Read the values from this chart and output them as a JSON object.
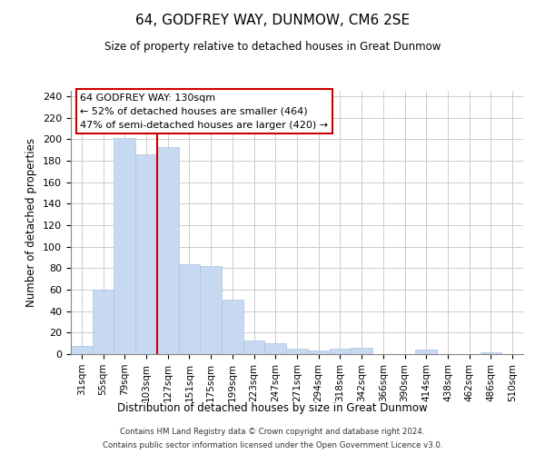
{
  "title": "64, GODFREY WAY, DUNMOW, CM6 2SE",
  "subtitle": "Size of property relative to detached houses in Great Dunmow",
  "xlabel": "Distribution of detached houses by size in Great Dunmow",
  "ylabel": "Number of detached properties",
  "bar_labels": [
    "31sqm",
    "55sqm",
    "79sqm",
    "103sqm",
    "127sqm",
    "151sqm",
    "175sqm",
    "199sqm",
    "223sqm",
    "247sqm",
    "271sqm",
    "294sqm",
    "318sqm",
    "342sqm",
    "366sqm",
    "390sqm",
    "414sqm",
    "438sqm",
    "462sqm",
    "486sqm",
    "510sqm"
  ],
  "bar_values": [
    8,
    60,
    201,
    186,
    193,
    84,
    82,
    51,
    13,
    10,
    5,
    3,
    5,
    6,
    0,
    0,
    4,
    0,
    0,
    2,
    0
  ],
  "bar_color": "#c6d9f0",
  "bar_edge_color": "#aac4e0",
  "vline_x_index": 4,
  "vline_color": "#cc0000",
  "ylim": [
    0,
    245
  ],
  "yticks": [
    0,
    20,
    40,
    60,
    80,
    100,
    120,
    140,
    160,
    180,
    200,
    220,
    240
  ],
  "annotation_title": "64 GODFREY WAY: 130sqm",
  "annotation_line1": "← 52% of detached houses are smaller (464)",
  "annotation_line2": "47% of semi-detached houses are larger (420) →",
  "footer_line1": "Contains HM Land Registry data © Crown copyright and database right 2024.",
  "footer_line2": "Contains public sector information licensed under the Open Government Licence v3.0."
}
